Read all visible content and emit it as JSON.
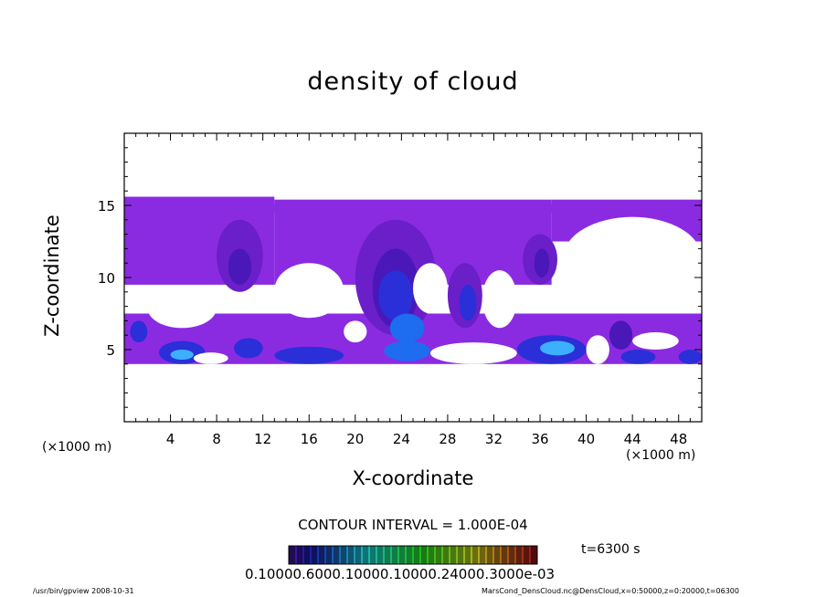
{
  "chart_data": {
    "type": "heatmap",
    "title": "density of cloud",
    "xlabel": "X-coordinate",
    "ylabel": "Z-coordinate",
    "x_unit_left": "(×1000 m)",
    "x_unit_right": "(×1000 m)",
    "xlim": [
      0,
      50
    ],
    "ylim": [
      0,
      20
    ],
    "x_ticks": [
      4,
      8,
      12,
      16,
      20,
      24,
      28,
      32,
      36,
      40,
      44,
      48
    ],
    "y_ticks": [
      5,
      10,
      15
    ],
    "contour_interval": "CONTOUR INTERVAL = 1.000E-04",
    "time": "t=6300 s",
    "colorbar_labels": "0.10000.6000.10000.10000.24000.3000e-03",
    "colors": {
      "level0": "#8a2be2",
      "level1": "#6a1fc8",
      "level2": "#4a17b8",
      "level3": "#2a2fd8",
      "level4": "#1e6cf0",
      "level5": "#3cb0ff"
    },
    "regions": [
      {
        "x0": 0,
        "x1": 50,
        "z0": 14.5,
        "z1": 15.1,
        "level": 0
      },
      {
        "x0": 0,
        "x1": 13,
        "z0": 9.5,
        "z1": 15.6,
        "level": 0
      },
      {
        "x0": 13,
        "x1": 37,
        "z0": 9.5,
        "z1": 15.4,
        "level": 0
      },
      {
        "x0": 37,
        "x1": 50,
        "z0": 12.5,
        "z1": 15.4,
        "level": 0
      },
      {
        "x0": 0,
        "x1": 50,
        "z0": 4.0,
        "z1": 7.5,
        "level": 0
      },
      {
        "x0": 8,
        "x1": 12,
        "z0": 9.0,
        "z1": 14.0,
        "level": 1
      },
      {
        "x0": 9,
        "x1": 11,
        "z0": 9.5,
        "z1": 12.0,
        "level": 2
      },
      {
        "x0": 20,
        "x1": 27,
        "z0": 6.0,
        "z1": 14.0,
        "level": 1
      },
      {
        "x0": 21.5,
        "x1": 25.5,
        "z0": 6.5,
        "z1": 12.0,
        "level": 2
      },
      {
        "x0": 22,
        "x1": 25,
        "z0": 7.0,
        "z1": 10.5,
        "level": 3
      },
      {
        "x0": 23,
        "x1": 26,
        "z0": 5.5,
        "z1": 7.5,
        "level": 4
      },
      {
        "x0": 28,
        "x1": 31,
        "z0": 6.5,
        "z1": 11.0,
        "level": 1
      },
      {
        "x0": 29,
        "x1": 30.5,
        "z0": 7.0,
        "z1": 9.5,
        "level": 3
      },
      {
        "x0": 34.5,
        "x1": 37.5,
        "z0": 9.5,
        "z1": 13.0,
        "level": 1
      },
      {
        "x0": 35.5,
        "x1": 36.8,
        "z0": 10.0,
        "z1": 12.0,
        "level": 2
      },
      {
        "x0": 3,
        "x1": 7,
        "z0": 4.0,
        "z1": 5.6,
        "level": 3
      },
      {
        "x0": 4,
        "x1": 6,
        "z0": 4.3,
        "z1": 5.0,
        "level": 5
      },
      {
        "x0": 9.5,
        "x1": 12,
        "z0": 4.4,
        "z1": 5.8,
        "level": 3
      },
      {
        "x0": 13,
        "x1": 19,
        "z0": 4.0,
        "z1": 5.2,
        "level": 3
      },
      {
        "x0": 22.5,
        "x1": 26.5,
        "z0": 4.2,
        "z1": 5.6,
        "level": 4
      },
      {
        "x0": 34,
        "x1": 40,
        "z0": 4.0,
        "z1": 6.0,
        "level": 3
      },
      {
        "x0": 36,
        "x1": 39,
        "z0": 4.6,
        "z1": 5.6,
        "level": 5
      },
      {
        "x0": 0.5,
        "x1": 2,
        "z0": 5.5,
        "z1": 7.0,
        "level": 3
      },
      {
        "x0": 42,
        "x1": 44,
        "z0": 5.0,
        "z1": 7.0,
        "level": 2
      },
      {
        "x0": 43,
        "x1": 46,
        "z0": 4.0,
        "z1": 5.0,
        "level": 3
      },
      {
        "x0": 48,
        "x1": 50,
        "z0": 4.0,
        "z1": 5.0,
        "level": 3
      }
    ],
    "holes": [
      {
        "x0": 13,
        "x1": 19,
        "z0": 7.2,
        "z1": 11.0
      },
      {
        "x0": 25,
        "x1": 28,
        "z0": 7.5,
        "z1": 11.0
      },
      {
        "x0": 31,
        "x1": 34,
        "z0": 6.5,
        "z1": 10.5
      },
      {
        "x0": 38,
        "x1": 50,
        "z0": 8.5,
        "z1": 14.2
      },
      {
        "x0": 2,
        "x1": 8,
        "z0": 6.5,
        "z1": 9.3
      },
      {
        "x0": 0,
        "x1": 50,
        "z0": 0,
        "z1": 3.9
      },
      {
        "x0": 19,
        "x1": 21,
        "z0": 5.5,
        "z1": 7.0
      },
      {
        "x0": 6,
        "x1": 9,
        "z0": 4.0,
        "z1": 4.8
      },
      {
        "x0": 26.5,
        "x1": 34,
        "z0": 4.0,
        "z1": 5.5
      },
      {
        "x0": 40,
        "x1": 42,
        "z0": 4.0,
        "z1": 6.0
      },
      {
        "x0": 44,
        "x1": 48,
        "z0": 5.0,
        "z1": 6.2
      }
    ]
  },
  "footer": {
    "left": "/usr/bin/gpview   2008-10-31",
    "right": "MarsCond_DensCloud.nc@DensCloud,x=0:50000,z=0:20000,t=06300"
  }
}
